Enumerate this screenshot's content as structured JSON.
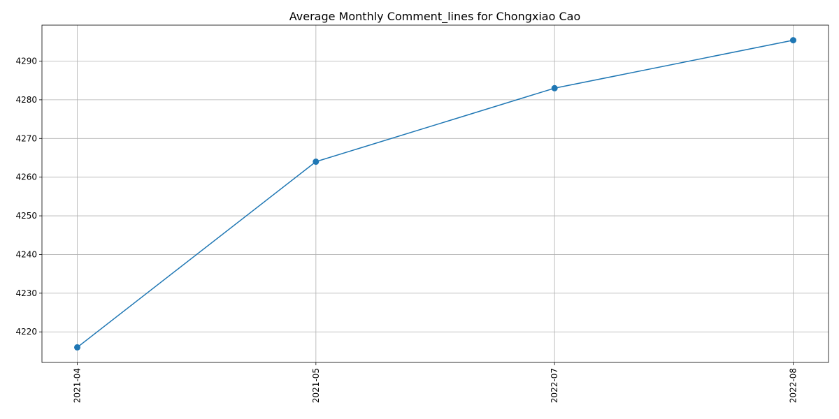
{
  "chart_data": {
    "type": "line",
    "title": "Average Monthly Comment_lines for Chongxiao Cao",
    "xlabel": "",
    "ylabel": "",
    "categories": [
      "2021-04",
      "2021-05",
      "2022-07",
      "2022-08"
    ],
    "series": [
      {
        "values": [
          4216,
          4264,
          4283,
          4295.4
        ],
        "color": "#1f77b4",
        "marker": "circle"
      }
    ],
    "ylim": [
      4212.1,
      4299.3
    ],
    "yticks": [
      4220,
      4230,
      4240,
      4250,
      4260,
      4270,
      4280,
      4290
    ],
    "grid": true,
    "x_tick_rotation": "vertical"
  }
}
